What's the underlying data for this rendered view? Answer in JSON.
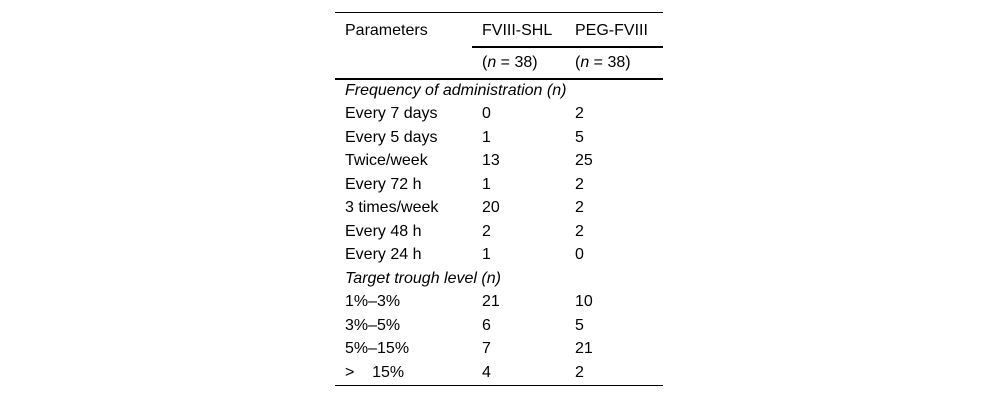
{
  "colors": {
    "background": "#ffffff",
    "text": "#000000",
    "rule": "#000000"
  },
  "table": {
    "columns": [
      {
        "label": "Parameters"
      },
      {
        "label": "FVIII-SHL",
        "sub": {
          "open": "(",
          "var": "n",
          "rest": " = 38)"
        }
      },
      {
        "label": "PEG-FVIII",
        "sub": {
          "open": "(",
          "var": "n",
          "rest": " = 38)"
        }
      }
    ],
    "rows": [
      {
        "type": "section",
        "label": "Frequency of administration (n)"
      },
      {
        "type": "data",
        "label": "Every 7 days",
        "values": [
          "0",
          "2"
        ]
      },
      {
        "type": "data",
        "label": "Every 5 days",
        "values": [
          "1",
          "5"
        ]
      },
      {
        "type": "data",
        "label": "Twice/week",
        "values": [
          "13",
          "25"
        ]
      },
      {
        "type": "data",
        "label": "Every 72 h",
        "values": [
          "1",
          "2"
        ]
      },
      {
        "type": "data",
        "label": "3 times/week",
        "values": [
          "20",
          "2"
        ]
      },
      {
        "type": "data",
        "label": "Every 48 h",
        "values": [
          "2",
          "2"
        ]
      },
      {
        "type": "data",
        "label": "Every 24 h",
        "values": [
          "1",
          "0"
        ]
      },
      {
        "type": "section",
        "label": "Target trough level (n)"
      },
      {
        "type": "data",
        "label": "1%–3%",
        "values": [
          "21",
          "10"
        ]
      },
      {
        "type": "data",
        "label": "3%–5%",
        "values": [
          "6",
          "5"
        ]
      },
      {
        "type": "data",
        "label": "5%–15%",
        "values": [
          "7",
          "21"
        ]
      },
      {
        "type": "data",
        "label": ">    15%",
        "values": [
          "4",
          "2"
        ]
      }
    ]
  }
}
